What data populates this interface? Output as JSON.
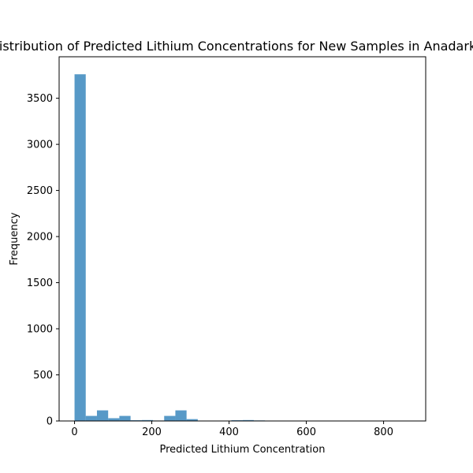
{
  "chart_data": {
    "type": "bar",
    "title": "Distribution of Predicted Lithium Concentrations for New Samples in Anadarko",
    "xlabel": "Predicted Lithium Concentration",
    "ylabel": "Frequency",
    "xlim": [
      -39.9,
      909.0
    ],
    "ylim": [
      0,
      3950
    ],
    "xticks": [
      0,
      200,
      400,
      600,
      800
    ],
    "yticks": [
      0,
      500,
      1000,
      1500,
      2000,
      2500,
      3000,
      3500
    ],
    "bin_width": 29,
    "bins": [
      {
        "x0": 0,
        "x1": 29,
        "count": 3760
      },
      {
        "x0": 29,
        "x1": 58,
        "count": 55
      },
      {
        "x0": 58,
        "x1": 87,
        "count": 115
      },
      {
        "x0": 87,
        "x1": 116,
        "count": 30
      },
      {
        "x0": 116,
        "x1": 145,
        "count": 55
      },
      {
        "x0": 145,
        "x1": 174,
        "count": 8
      },
      {
        "x0": 174,
        "x1": 203,
        "count": 10
      },
      {
        "x0": 203,
        "x1": 232,
        "count": 5
      },
      {
        "x0": 232,
        "x1": 261,
        "count": 55
      },
      {
        "x0": 261,
        "x1": 290,
        "count": 115
      },
      {
        "x0": 290,
        "x1": 319,
        "count": 20
      },
      {
        "x0": 319,
        "x1": 348,
        "count": 3
      },
      {
        "x0": 348,
        "x1": 377,
        "count": 2
      },
      {
        "x0": 377,
        "x1": 406,
        "count": 2
      },
      {
        "x0": 406,
        "x1": 435,
        "count": 8
      },
      {
        "x0": 435,
        "x1": 464,
        "count": 10
      },
      {
        "x0": 464,
        "x1": 493,
        "count": 6
      },
      {
        "x0": 493,
        "x1": 522,
        "count": 2
      },
      {
        "x0": 522,
        "x1": 551,
        "count": 2
      },
      {
        "x0": 551,
        "x1": 580,
        "count": 1
      },
      {
        "x0": 580,
        "x1": 609,
        "count": 1
      },
      {
        "x0": 609,
        "x1": 638,
        "count": 1
      },
      {
        "x0": 638,
        "x1": 667,
        "count": 1
      },
      {
        "x0": 667,
        "x1": 696,
        "count": 1
      },
      {
        "x0": 696,
        "x1": 725,
        "count": 1
      },
      {
        "x0": 725,
        "x1": 754,
        "count": 1
      },
      {
        "x0": 754,
        "x1": 783,
        "count": 1
      },
      {
        "x0": 783,
        "x1": 812,
        "count": 1
      },
      {
        "x0": 812,
        "x1": 841,
        "count": 1
      },
      {
        "x0": 841,
        "x1": 870,
        "count": 1
      }
    ],
    "bar_color": "#1f77b4",
    "bar_opacity": 0.75,
    "grid": false,
    "legend": "none"
  }
}
